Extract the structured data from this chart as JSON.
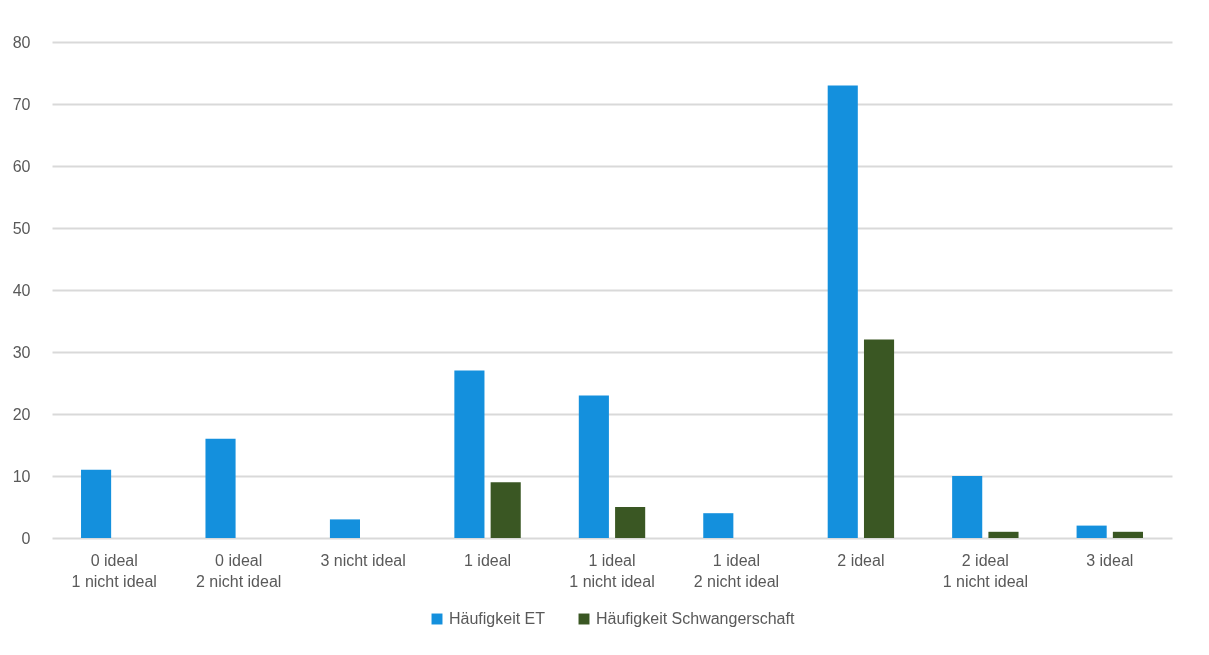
{
  "chart_data": {
    "type": "bar",
    "categories": [
      "0 ideal\n1 nicht ideal",
      "0 ideal\n2 nicht ideal",
      "3 nicht ideal",
      "1 ideal",
      "1 ideal\n1 nicht ideal",
      "1 ideal\n2 nicht ideal",
      "2 ideal",
      "2 ideal\n1 nicht ideal",
      "3 ideal"
    ],
    "series": [
      {
        "name": "Häufigkeit ET",
        "color": "#1490dd",
        "values": [
          11,
          16,
          3,
          27,
          23,
          4,
          73,
          10,
          2
        ]
      },
      {
        "name": "Häufigkeit Schwangerschaft",
        "color": "#3a5723",
        "values": [
          0,
          0,
          0,
          9,
          5,
          0,
          32,
          1,
          1
        ]
      }
    ],
    "ylim": [
      0,
      80
    ],
    "yticks": [
      0,
      10,
      20,
      30,
      40,
      50,
      60,
      70,
      80
    ],
    "grid": "y",
    "legend": "bottom"
  }
}
